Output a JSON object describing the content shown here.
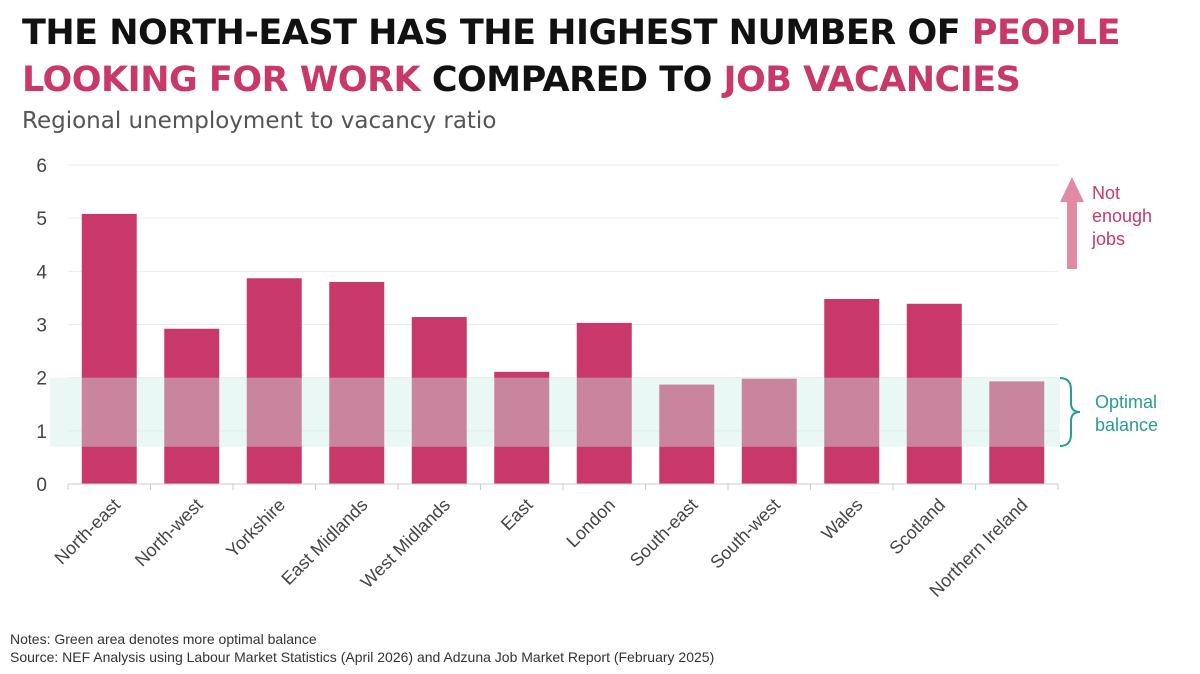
{
  "title": {
    "part1": "THE NORTH-EAST HAS THE HIGHEST NUMBER OF ",
    "part2": "PEOPLE LOOKING FOR WORK",
    "part3": " COMPARED TO ",
    "part4": "JOB VACANCIES"
  },
  "subtitle": "Regional unemployment to vacancy ratio",
  "colors": {
    "bar": "#c8386a",
    "accent": "#c8386a",
    "band": "#dff2ee",
    "balance": "#2a9d8f",
    "arrow": "#e08aa3"
  },
  "chart_data": {
    "type": "bar",
    "categories": [
      "North-east",
      "North-west",
      "Yorkshire",
      "East Midlands",
      "West Midlands",
      "East",
      "London",
      "South-east",
      "South-west",
      "Wales",
      "Scotland",
      "Northern Ireland"
    ],
    "values": [
      5.08,
      2.92,
      3.87,
      3.8,
      3.14,
      2.11,
      3.03,
      1.87,
      1.98,
      3.48,
      3.39,
      1.93
    ],
    "ylim": [
      0,
      6
    ],
    "yticks": [
      0,
      1,
      2,
      3,
      4,
      5,
      6
    ],
    "grid": true,
    "band": [
      0.7,
      2.0
    ],
    "annotations": {
      "up": [
        "Not",
        "enough",
        "jobs"
      ],
      "balance": [
        "Optimal",
        "balance"
      ]
    }
  },
  "footer": {
    "notes": "Notes: Green area denotes more optimal balance",
    "source": "Source: NEF Analysis using Labour Market Statistics (April 2026) and Adzuna Job Market Report (February 2025)"
  }
}
